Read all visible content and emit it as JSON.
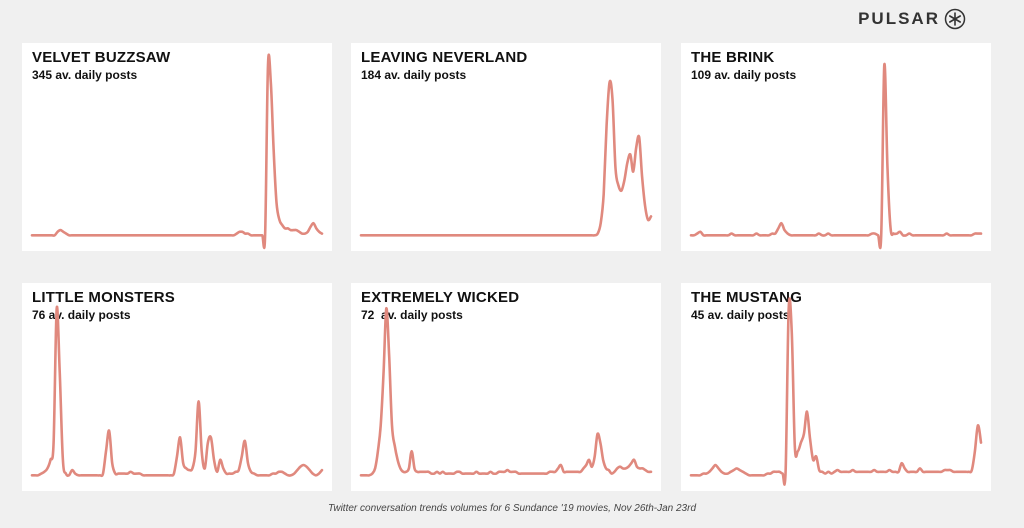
{
  "brand": {
    "name": "PULSAR",
    "logo_icon": "pulsar-asterisk-icon",
    "color": "#333333"
  },
  "caption": "Twitter conversation trends volumes for 6 Sundance '19 movies, Nov 26th-Jan 23rd",
  "line_color": "#e0897e",
  "chart_data": [
    {
      "type": "line",
      "title": "VELVET BUZZSAW",
      "subtitle": "345 av. daily posts",
      "x_range": "Nov 26th-Jan 23rd",
      "ylim": [
        0,
        100
      ],
      "values": [
        1,
        1,
        1,
        1,
        1,
        1,
        1,
        1,
        1,
        3,
        4,
        3,
        2,
        1,
        1,
        1,
        1,
        1,
        1,
        1,
        1,
        1,
        1,
        1,
        1,
        1,
        1,
        1,
        1,
        1,
        1,
        1,
        1,
        1,
        1,
        1,
        1,
        1,
        1,
        1,
        1,
        1,
        1,
        1,
        1,
        1,
        1,
        1,
        1,
        1,
        1,
        1,
        1,
        1,
        1,
        1,
        1,
        1,
        1,
        1,
        1,
        1,
        1,
        1,
        1,
        1,
        1,
        1,
        1,
        1,
        1,
        1,
        2,
        3,
        3,
        2,
        2,
        1,
        1,
        1,
        1,
        1,
        1,
        100,
        90,
        50,
        20,
        10,
        7,
        5,
        5,
        4,
        4,
        4,
        3,
        2,
        2,
        3,
        6,
        8,
        5,
        3,
        2
      ]
    },
    {
      "type": "line",
      "title": "LEAVING NEVERLAND",
      "subtitle": "184 av. daily posts",
      "x_range": "Nov 26th-Jan 23rd",
      "ylim": [
        0,
        100
      ],
      "values": [
        1,
        1,
        1,
        1,
        1,
        1,
        1,
        1,
        1,
        1,
        1,
        1,
        1,
        1,
        1,
        1,
        1,
        1,
        1,
        1,
        1,
        1,
        1,
        1,
        1,
        1,
        1,
        1,
        1,
        1,
        1,
        1,
        1,
        1,
        1,
        1,
        1,
        1,
        1,
        1,
        1,
        1,
        1,
        1,
        1,
        1,
        1,
        1,
        1,
        1,
        1,
        1,
        1,
        1,
        1,
        1,
        1,
        1,
        1,
        1,
        1,
        1,
        1,
        1,
        1,
        1,
        1,
        1,
        1,
        1,
        1,
        1,
        1,
        1,
        1,
        1,
        1,
        1,
        1,
        1,
        2,
        8,
        25,
        65,
        90,
        80,
        40,
        30,
        27,
        33,
        43,
        48,
        38,
        52,
        58,
        35,
        18,
        10,
        12
      ]
    },
    {
      "type": "line",
      "title": "THE BRINK",
      "subtitle": "109 av. daily posts",
      "x_range": "Nov 26th-Jan 23rd",
      "ylim": [
        0,
        100
      ],
      "values": [
        1,
        1,
        2,
        3,
        1,
        1,
        1,
        1,
        1,
        1,
        1,
        1,
        1,
        2,
        1,
        1,
        1,
        1,
        1,
        1,
        1,
        2,
        1,
        1,
        1,
        1,
        2,
        2,
        5,
        8,
        4,
        2,
        1,
        1,
        1,
        1,
        1,
        1,
        1,
        1,
        1,
        2,
        1,
        1,
        2,
        1,
        1,
        1,
        1,
        1,
        1,
        1,
        1,
        1,
        1,
        1,
        1,
        1,
        2,
        2,
        1,
        1,
        100,
        40,
        5,
        2,
        2,
        3,
        1,
        1,
        2,
        1,
        1,
        1,
        1,
        1,
        1,
        1,
        1,
        1,
        1,
        1,
        2,
        1,
        1,
        1,
        1,
        1,
        1,
        1,
        1,
        2,
        2,
        2
      ]
    },
    {
      "type": "line",
      "title": "LITTLE MONSTERS",
      "subtitle": "76 av. daily posts",
      "x_range": "Nov 26th-Jan 23rd",
      "ylim": [
        0,
        100
      ],
      "values": [
        1,
        1,
        1,
        2,
        3,
        5,
        10,
        20,
        98,
        60,
        10,
        2,
        1,
        4,
        2,
        1,
        1,
        1,
        1,
        1,
        1,
        1,
        1,
        2,
        15,
        27,
        8,
        2,
        2,
        2,
        2,
        2,
        3,
        2,
        2,
        2,
        1,
        1,
        1,
        1,
        1,
        1,
        1,
        1,
        1,
        1,
        2,
        12,
        23,
        8,
        5,
        4,
        5,
        15,
        44,
        15,
        5,
        20,
        23,
        10,
        3,
        10,
        5,
        2,
        2,
        2,
        3,
        4,
        12,
        21,
        8,
        3,
        2,
        1,
        1,
        1,
        1,
        1,
        2,
        2,
        3,
        3,
        2,
        1,
        1,
        2,
        4,
        6,
        7,
        6,
        4,
        2,
        1,
        2,
        4
      ]
    },
    {
      "type": "line",
      "title": "EXTREMELY WICKED",
      "subtitle": "72  av. daily posts",
      "x_range": "Nov 26th-Jan 23rd",
      "ylim": [
        0,
        100
      ],
      "values": [
        1,
        1,
        1,
        1,
        2,
        5,
        15,
        30,
        60,
        98,
        70,
        30,
        18,
        10,
        5,
        3,
        3,
        5,
        15,
        5,
        3,
        3,
        3,
        3,
        3,
        2,
        2,
        3,
        2,
        3,
        2,
        2,
        2,
        2,
        3,
        3,
        2,
        2,
        2,
        2,
        2,
        3,
        2,
        2,
        2,
        2,
        3,
        2,
        2,
        3,
        3,
        3,
        4,
        3,
        3,
        3,
        2,
        2,
        2,
        2,
        2,
        2,
        2,
        2,
        2,
        2,
        2,
        3,
        3,
        3,
        5,
        7,
        3,
        3,
        3,
        3,
        3,
        3,
        3,
        5,
        7,
        10,
        6,
        12,
        25,
        20,
        10,
        5,
        4,
        2,
        3,
        5,
        6,
        5,
        5,
        6,
        8,
        10,
        6,
        5,
        5,
        4,
        3,
        3
      ]
    },
    {
      "type": "line",
      "title": "THE MUSTANG",
      "subtitle": "45 av. daily posts",
      "x_range": "Nov 26th-Jan 23rd",
      "ylim": [
        0,
        100
      ],
      "values": [
        1,
        1,
        1,
        1,
        2,
        2,
        3,
        5,
        7,
        5,
        3,
        2,
        2,
        3,
        4,
        5,
        4,
        3,
        2,
        1,
        1,
        1,
        1,
        1,
        1,
        2,
        2,
        3,
        3,
        3,
        2,
        3,
        98,
        85,
        18,
        15,
        20,
        25,
        38,
        22,
        10,
        12,
        4,
        3,
        2,
        3,
        2,
        3,
        4,
        3,
        3,
        3,
        3,
        4,
        3,
        3,
        3,
        3,
        3,
        3,
        4,
        3,
        3,
        3,
        3,
        4,
        3,
        3,
        3,
        8,
        5,
        3,
        3,
        3,
        3,
        5,
        3,
        3,
        3,
        3,
        3,
        3,
        3,
        4,
        4,
        4,
        3,
        3,
        3,
        3,
        3,
        3,
        4,
        15,
        30,
        20
      ]
    }
  ]
}
